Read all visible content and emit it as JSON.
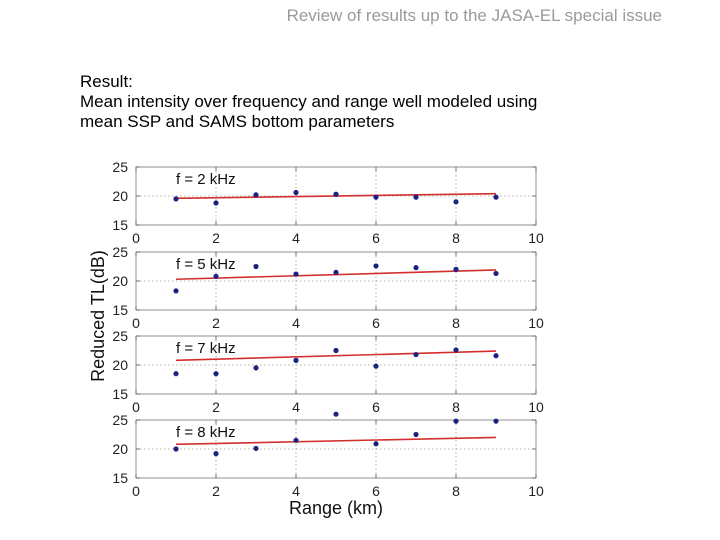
{
  "header": {
    "title": "Review of results up to the JASA-EL special issue"
  },
  "result": {
    "heading": "Result:",
    "line1": "Mean intensity over frequency and range well modeled using",
    "line2": "mean SSP and SAMS bottom parameters"
  },
  "colors": {
    "data": "#1a237e",
    "fit": "#d32f2f",
    "grid": "#9a9a9a"
  },
  "chart_data": {
    "type": "scatter",
    "xlabel": "Range (km)",
    "ylabel": "Reduced TL(dB)",
    "xlim": [
      0,
      10
    ],
    "ylim": [
      15,
      25
    ],
    "xticks": [
      0,
      2,
      4,
      6,
      8,
      10
    ],
    "yticks": [
      15,
      20,
      25
    ],
    "grid": true,
    "panels": [
      {
        "label": "f = 2 kHz",
        "x": [
          1,
          2,
          3,
          4,
          5,
          6,
          7,
          8,
          9
        ],
        "y": [
          19.5,
          18.8,
          20.2,
          20.6,
          20.3,
          19.8,
          19.8,
          19.0,
          19.8
        ],
        "fit": [
          [
            1,
            19.6
          ],
          [
            9,
            20.4
          ]
        ]
      },
      {
        "label": "f = 5 kHz",
        "x": [
          1,
          2,
          3,
          4,
          5,
          6,
          7,
          8,
          9
        ],
        "y": [
          18.3,
          20.8,
          22.5,
          21.2,
          21.5,
          22.6,
          22.3,
          22.0,
          21.3
        ],
        "fit": [
          [
            1,
            20.3
          ],
          [
            9,
            21.9
          ]
        ]
      },
      {
        "label": "f = 7 kHz",
        "x": [
          1,
          2,
          3,
          4,
          5,
          6,
          7,
          8,
          9
        ],
        "y": [
          18.5,
          18.5,
          19.5,
          20.8,
          22.5,
          19.8,
          21.8,
          22.6,
          21.6
        ],
        "fit": [
          [
            1,
            20.8
          ],
          [
            9,
            22.4
          ]
        ]
      },
      {
        "label": "f = 8 kHz",
        "x": [
          1,
          2,
          3,
          4,
          5,
          6,
          7,
          8,
          9
        ],
        "y": [
          20.0,
          19.2,
          20.1,
          21.5,
          26.0,
          20.9,
          22.5,
          24.8,
          24.8
        ],
        "fit": [
          [
            1,
            20.8
          ],
          [
            9,
            22.0
          ]
        ]
      }
    ]
  }
}
